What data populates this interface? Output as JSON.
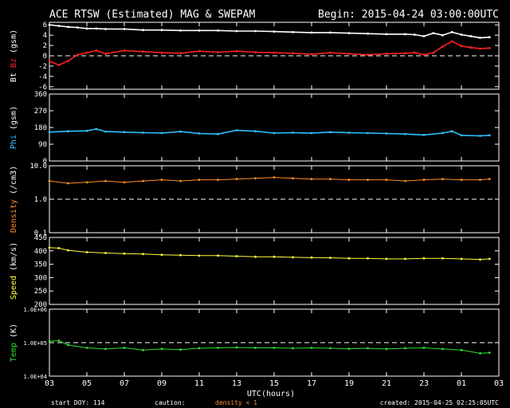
{
  "header": {
    "title": "ACE RTSW (Estimated) MAG & SWEPAM",
    "begin": "Begin: 2015-04-24 03:00:00UTC"
  },
  "footer": {
    "start_doy": "start DOY: 114",
    "caution": "caution:",
    "density_note": "density < 1",
    "created": "created: 2015-04-25 02:25:05UTC"
  },
  "colors": {
    "bt": "#ffffff",
    "bz": "#ff2020",
    "phi": "#30c0ff",
    "density": "#ff8c28",
    "speed": "#ffff40",
    "temp": "#30e030",
    "axis": "#ffffff",
    "background": "#000000"
  },
  "chart_data": [
    {
      "type": "line",
      "ylabel_prefix": "Bt",
      "ylabel_series": "Bz",
      "ylabel_unit": "(gsm)",
      "yticks": [
        "6",
        "4",
        "2",
        "0",
        "-2",
        "-4",
        "-6"
      ],
      "ylim": [
        -6.5,
        6.5
      ],
      "scale": "linear",
      "ref_line": 0,
      "x": [
        3,
        3.5,
        4,
        4.5,
        5,
        5.5,
        6,
        7,
        8,
        9,
        10,
        11,
        12,
        13,
        14,
        15,
        16,
        17,
        18,
        19,
        20,
        21,
        22,
        22.5,
        23,
        23.5,
        24,
        24.5,
        25,
        25.5,
        26,
        26.5
      ],
      "series": [
        {
          "name": "Bt",
          "values": [
            6.0,
            5.8,
            5.6,
            5.5,
            5.3,
            5.3,
            5.2,
            5.2,
            5.0,
            5.0,
            4.9,
            4.9,
            4.9,
            4.8,
            4.8,
            4.7,
            4.6,
            4.5,
            4.5,
            4.4,
            4.3,
            4.2,
            4.2,
            4.1,
            3.8,
            4.4,
            4.0,
            4.6,
            4.1,
            3.8,
            3.5,
            3.6
          ]
        },
        {
          "name": "Bz",
          "values": [
            -1.0,
            -1.8,
            -1.0,
            0.2,
            0.6,
            1.0,
            0.4,
            1.0,
            0.8,
            0.6,
            0.5,
            0.9,
            0.7,
            0.9,
            0.7,
            0.6,
            0.5,
            0.3,
            0.6,
            0.4,
            0.2,
            0.4,
            0.5,
            0.6,
            0.2,
            0.6,
            1.8,
            2.8,
            1.9,
            1.6,
            1.4,
            1.5
          ]
        }
      ]
    },
    {
      "type": "line",
      "ylabel_series": "Phi",
      "ylabel_unit": "(gsm)",
      "yticks": [
        "360",
        "270",
        "180",
        "90",
        "0"
      ],
      "ylim": [
        0,
        360
      ],
      "scale": "linear",
      "x": [
        3,
        4,
        5,
        5.5,
        6,
        7,
        8,
        9,
        10,
        11,
        12,
        13,
        14,
        15,
        16,
        17,
        18,
        19,
        20,
        21,
        22,
        23,
        24,
        24.5,
        25,
        26,
        26.5
      ],
      "series": [
        {
          "name": "Phi",
          "values": [
            155,
            160,
            162,
            172,
            158,
            155,
            152,
            150,
            158,
            148,
            145,
            165,
            160,
            150,
            152,
            150,
            155,
            152,
            150,
            148,
            145,
            140,
            150,
            160,
            138,
            135,
            138
          ]
        }
      ]
    },
    {
      "type": "scatter",
      "ylabel_series": "Density",
      "ylabel_unit": "(/cm3)",
      "yticks": [
        "10.0",
        "1.0",
        "0.1"
      ],
      "ylim": [
        0.1,
        10.0
      ],
      "scale": "log",
      "ref_line": 1.0,
      "x": [
        3,
        4,
        5,
        6,
        7,
        8,
        9,
        10,
        11,
        12,
        13,
        14,
        15,
        16,
        17,
        18,
        19,
        20,
        21,
        22,
        23,
        24,
        25,
        26,
        26.5
      ],
      "series": [
        {
          "name": "Density",
          "values": [
            3.5,
            3.0,
            3.2,
            3.5,
            3.2,
            3.5,
            3.8,
            3.5,
            3.8,
            3.8,
            4.0,
            4.2,
            4.5,
            4.2,
            4.0,
            4.0,
            3.8,
            3.8,
            3.8,
            3.5,
            3.8,
            4.0,
            3.8,
            3.8,
            4.0
          ]
        }
      ]
    },
    {
      "type": "scatter",
      "ylabel_series": "Speed",
      "ylabel_unit": "(km/s)",
      "yticks": [
        "450",
        "400",
        "350",
        "300",
        "250",
        "200"
      ],
      "ylim": [
        200,
        450
      ],
      "scale": "linear",
      "x": [
        3,
        3.5,
        4,
        5,
        6,
        7,
        8,
        9,
        10,
        11,
        12,
        13,
        14,
        15,
        16,
        17,
        18,
        19,
        20,
        21,
        22,
        23,
        24,
        25,
        26,
        26.5
      ],
      "series": [
        {
          "name": "Speed",
          "values": [
            412,
            410,
            402,
            395,
            392,
            390,
            388,
            385,
            384,
            382,
            382,
            380,
            378,
            378,
            376,
            375,
            374,
            372,
            372,
            370,
            370,
            372,
            372,
            370,
            368,
            370
          ]
        }
      ]
    },
    {
      "type": "scatter",
      "ylabel_series": "Temp",
      "ylabel_unit": "(K)",
      "yticks": [
        "1.0E+06",
        "1.0E+05",
        "1.0E+04"
      ],
      "ylim": [
        10000,
        1000000
      ],
      "scale": "log",
      "ref_line": 100000,
      "x": [
        3,
        3.5,
        4,
        5,
        6,
        7,
        8,
        9,
        10,
        11,
        12,
        13,
        14,
        15,
        16,
        17,
        18,
        19,
        20,
        21,
        22,
        23,
        24,
        25,
        26,
        26.5
      ],
      "series": [
        {
          "name": "Temp",
          "values": [
            110000,
            115000,
            85000,
            70000,
            65000,
            70000,
            60000,
            65000,
            62000,
            68000,
            70000,
            72000,
            70000,
            70000,
            68000,
            70000,
            68000,
            66000,
            68000,
            65000,
            68000,
            70000,
            65000,
            60000,
            48000,
            50000
          ]
        }
      ]
    }
  ],
  "x_axis": {
    "label": "UTC(hours)",
    "ticks": [
      "03",
      "05",
      "07",
      "09",
      "11",
      "13",
      "15",
      "17",
      "19",
      "21",
      "23",
      "01",
      "03"
    ],
    "xlim": [
      3,
      27
    ]
  }
}
